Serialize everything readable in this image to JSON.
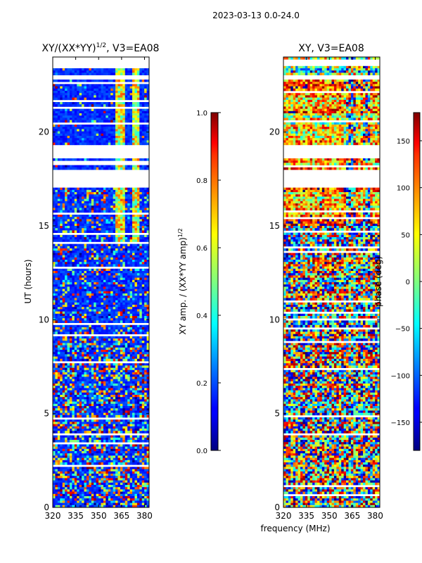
{
  "figure": {
    "suptitle": "2023-03-13 0.0-24.0",
    "shared_xlabel": "frequency (MHz)"
  },
  "chart_data": [
    {
      "type": "heatmap",
      "title_main": "XY/(XX*YY)",
      "title_sup": "1/2",
      "title_suffix": ", V3=EA08",
      "xlabel": "",
      "ylabel": "UT (hours)",
      "xlim": [
        320,
        383
      ],
      "ylim": [
        0,
        24
      ],
      "xticks": [
        "320",
        "335",
        "350",
        "365",
        "380"
      ],
      "yticks": [
        "0",
        "5",
        "10",
        "15",
        "20"
      ],
      "colorbar": {
        "label_main": "XY amp. / (XX*YY amp)",
        "label_sup": "1/2",
        "range": [
          0.0,
          1.0
        ],
        "ticks": [
          "0.0",
          "0.2",
          "0.4",
          "0.6",
          "0.8",
          "1.0"
        ]
      }
    },
    {
      "type": "heatmap",
      "title_main": "XY, V3=EA08",
      "xlabel": "frequency (MHz)",
      "ylabel": "",
      "xlim": [
        320,
        383
      ],
      "ylim": [
        0,
        24
      ],
      "xticks": [
        "320",
        "335",
        "350",
        "365",
        "380"
      ],
      "yticks": [
        "0",
        "5",
        "10",
        "15",
        "20"
      ],
      "colorbar": {
        "label_main": "phase (deg)",
        "range": [
          -180,
          180
        ],
        "ticks": [
          "−150",
          "−100",
          "−50",
          "0",
          "50",
          "100",
          "150"
        ]
      }
    }
  ],
  "colors": {
    "background": "#ffffff",
    "axes": "#000000",
    "colormap": "jet"
  }
}
